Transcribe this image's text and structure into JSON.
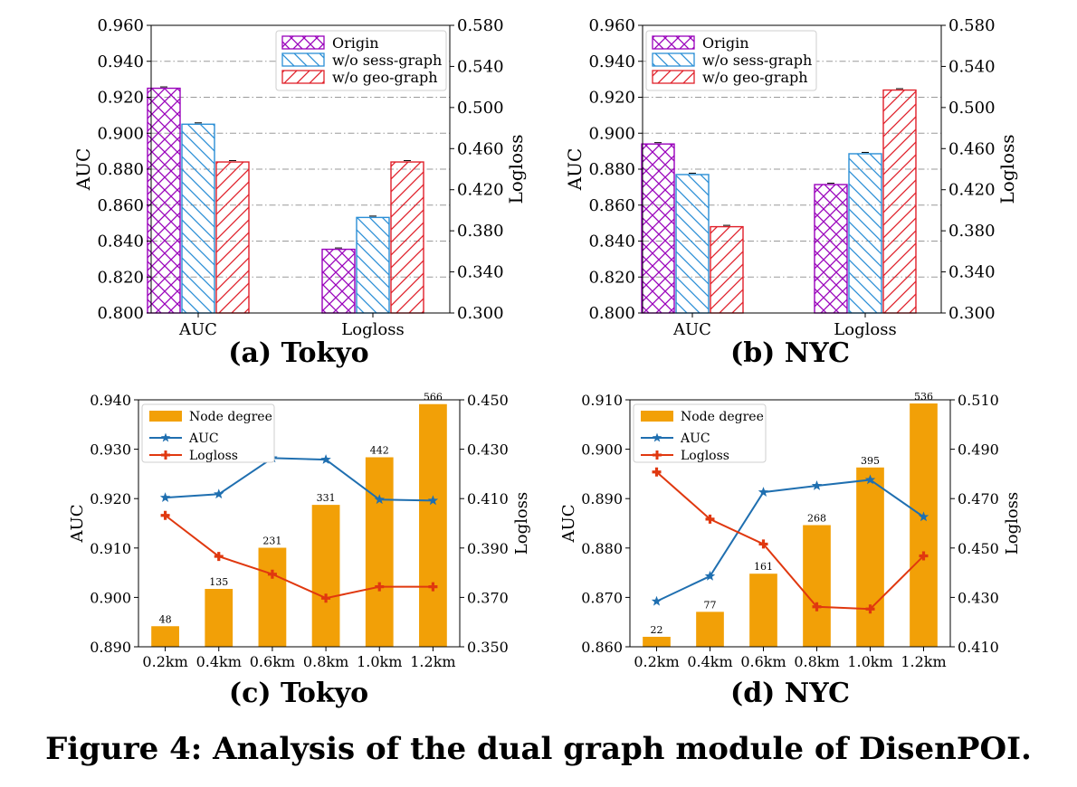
{
  "figure": {
    "caption": "Figure 4: Analysis of the dual graph module of DisenPOI."
  },
  "chart_data": [
    {
      "id": "a",
      "type": "bar",
      "caption": "(a) Tokyo",
      "categories": [
        "AUC",
        "Logloss"
      ],
      "series": [
        {
          "name": "Origin",
          "color": "#9900bb",
          "pattern": "crosshatch",
          "values": [
            0.925,
            0.362
          ]
        },
        {
          "name": "w/o sess-graph",
          "color": "#2b8fd6",
          "pattern": "backslash",
          "values": [
            0.905,
            0.393
          ]
        },
        {
          "name": "w/o geo-graph",
          "color": "#e0202a",
          "pattern": "slash",
          "values": [
            0.884,
            0.447
          ]
        }
      ],
      "value_axis": [
        "left",
        "right"
      ],
      "ylabel_left": "AUC",
      "ylabel_right": "Logloss",
      "ylim_left": [
        0.8,
        0.96
      ],
      "ylim_right": [
        0.3,
        0.58
      ],
      "yticks_left": [
        "0.800",
        "0.820",
        "0.840",
        "0.860",
        "0.880",
        "0.900",
        "0.920",
        "0.940",
        "0.960"
      ],
      "yticks_right": [
        "0.300",
        "0.340",
        "0.380",
        "0.420",
        "0.460",
        "0.500",
        "0.540",
        "0.580"
      ],
      "legend": "top-right",
      "grid": true
    },
    {
      "id": "b",
      "type": "bar",
      "caption": "(b) NYC",
      "categories": [
        "AUC",
        "Logloss"
      ],
      "series": [
        {
          "name": "Origin",
          "color": "#9900bb",
          "pattern": "crosshatch",
          "values": [
            0.894,
            0.425
          ]
        },
        {
          "name": "w/o sess-graph",
          "color": "#2b8fd6",
          "pattern": "backslash",
          "values": [
            0.877,
            0.455
          ]
        },
        {
          "name": "w/o geo-graph",
          "color": "#e0202a",
          "pattern": "slash",
          "values": [
            0.848,
            0.517
          ]
        }
      ],
      "value_axis": [
        "left",
        "right"
      ],
      "ylabel_left": "AUC",
      "ylabel_right": "Logloss",
      "ylim_left": [
        0.8,
        0.96
      ],
      "ylim_right": [
        0.3,
        0.58
      ],
      "yticks_left": [
        "0.800",
        "0.820",
        "0.840",
        "0.860",
        "0.880",
        "0.900",
        "0.920",
        "0.940",
        "0.960"
      ],
      "yticks_right": [
        "0.300",
        "0.340",
        "0.380",
        "0.420",
        "0.460",
        "0.500",
        "0.540",
        "0.580"
      ],
      "legend": "top-left",
      "grid": true
    },
    {
      "id": "c",
      "type": "bar+line",
      "caption": "(c) Tokyo",
      "categories": [
        "0.2km",
        "0.4km",
        "0.6km",
        "0.8km",
        "1.0km",
        "1.2km"
      ],
      "bars": {
        "name": "Node degree",
        "color": "#f2a007",
        "values": [
          48,
          135,
          231,
          331,
          442,
          566
        ],
        "labels": [
          "48",
          "135",
          "231",
          "331",
          "442",
          "566"
        ],
        "scale_max": 576
      },
      "lines": [
        {
          "name": "AUC",
          "color": "#1f6fb0",
          "marker": "star",
          "axis": "left",
          "values": [
            0.9202,
            0.9209,
            0.9282,
            0.9279,
            0.9198,
            0.9196
          ]
        },
        {
          "name": "Logloss",
          "color": "#e0380f",
          "marker": "plus",
          "axis": "right",
          "values": [
            0.4032,
            0.3866,
            0.3794,
            0.3697,
            0.3743,
            0.3743
          ]
        }
      ],
      "ylabel_left": "AUC",
      "ylabel_right": "Logloss",
      "ylim_left": [
        0.89,
        0.94
      ],
      "ylim_right": [
        0.35,
        0.45
      ],
      "yticks_left": [
        "0.890",
        "0.900",
        "0.910",
        "0.920",
        "0.930",
        "0.940"
      ],
      "yticks_right": [
        "0.350",
        "0.370",
        "0.390",
        "0.410",
        "0.430",
        "0.450"
      ],
      "legend": "top-left",
      "grid": false
    },
    {
      "id": "d",
      "type": "bar+line",
      "caption": "(d) NYC",
      "categories": [
        "0.2km",
        "0.4km",
        "0.6km",
        "0.8km",
        "1.0km",
        "1.2km"
      ],
      "bars": {
        "name": "Node degree",
        "color": "#f2a007",
        "values": [
          22,
          77,
          161,
          268,
          395,
          536
        ],
        "labels": [
          "22",
          "77",
          "161",
          "268",
          "395",
          "536"
        ],
        "scale_max": 544
      },
      "lines": [
        {
          "name": "AUC",
          "color": "#1f6fb0",
          "marker": "star",
          "axis": "left",
          "values": [
            0.8692,
            0.8743,
            0.8913,
            0.8926,
            0.8938,
            0.8863
          ]
        },
        {
          "name": "Logloss",
          "color": "#e0380f",
          "marker": "plus",
          "axis": "right",
          "values": [
            0.4808,
            0.4617,
            0.4516,
            0.4262,
            0.4253,
            0.4468
          ]
        }
      ],
      "ylabel_left": "AUC",
      "ylabel_right": "Logloss",
      "ylim_left": [
        0.86,
        0.91
      ],
      "ylim_right": [
        0.41,
        0.51
      ],
      "yticks_left": [
        "0.860",
        "0.870",
        "0.880",
        "0.890",
        "0.900",
        "0.910"
      ],
      "yticks_right": [
        "0.410",
        "0.430",
        "0.450",
        "0.470",
        "0.490",
        "0.510"
      ],
      "legend": "top-left",
      "grid": false
    }
  ]
}
